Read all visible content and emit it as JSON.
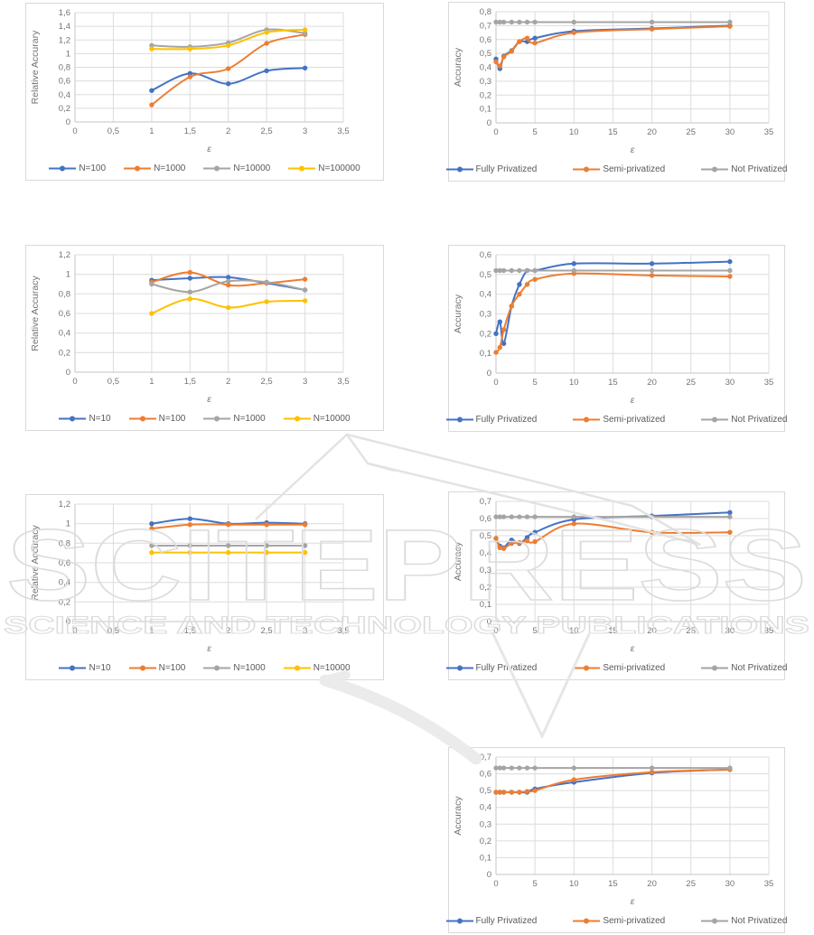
{
  "watermark": {
    "brand": "SCITEPRESS",
    "tagline": "SCIENCE AND TECHNOLOGY PUBLICATIONS"
  },
  "colors": {
    "blue": "#4472C4",
    "orange": "#ED7D31",
    "gray": "#A5A5A5",
    "yellow": "#FFC000",
    "grid": "#DCDCDC",
    "axis_line": "#C6C6C6",
    "watermark": "#DCDCDC"
  },
  "chart_data": [
    {
      "name": "relative-accuracy-vs-epsilon-1",
      "type": "line",
      "ylabel": "Relative Accurary",
      "xlabel": "ε",
      "xlim": [
        0,
        3.5
      ],
      "ylim": [
        0,
        1.6
      ],
      "xticks": [
        0,
        0.5,
        1,
        1.5,
        2,
        2.5,
        3,
        3.5
      ],
      "xtick_labels": [
        "0",
        "0,5",
        "1",
        "1,5",
        "2",
        "2,5",
        "3",
        "3,5"
      ],
      "yticks": [
        0,
        0.2,
        0.4,
        0.6,
        0.8,
        1,
        1.2,
        1.4,
        1.6
      ],
      "ytick_labels": [
        "0",
        "0,2",
        "0,4",
        "0,6",
        "0,8",
        "1",
        "1,2",
        "1,4",
        "1,6"
      ],
      "x": [
        1,
        1.5,
        2,
        2.5,
        3
      ],
      "series": [
        {
          "name": "N=100",
          "color": "blue",
          "values": [
            0.46,
            0.71,
            0.56,
            0.75,
            0.79
          ]
        },
        {
          "name": "N=1000",
          "color": "orange",
          "values": [
            0.25,
            0.66,
            0.78,
            1.15,
            1.28
          ]
        },
        {
          "name": "N=10000",
          "color": "gray",
          "values": [
            1.12,
            1.1,
            1.16,
            1.35,
            1.3
          ]
        },
        {
          "name": "N=100000",
          "color": "yellow",
          "values": [
            1.07,
            1.07,
            1.12,
            1.31,
            1.35
          ]
        }
      ]
    },
    {
      "name": "accuracy-vs-epsilon-1",
      "type": "line",
      "ylabel": "Accuracy",
      "xlabel": "ε",
      "xlim": [
        0,
        35
      ],
      "ylim": [
        0,
        0.8
      ],
      "xticks": [
        0,
        5,
        10,
        15,
        20,
        25,
        30,
        35
      ],
      "xtick_labels": [
        "0",
        "5",
        "10",
        "15",
        "20",
        "25",
        "30",
        "35"
      ],
      "yticks": [
        0,
        0.1,
        0.2,
        0.3,
        0.4,
        0.5,
        0.6,
        0.7,
        0.8
      ],
      "ytick_labels": [
        "0",
        "0,1",
        "0,2",
        "0,3",
        "0,4",
        "0,5",
        "0,6",
        "0,7",
        "0,8"
      ],
      "x": [
        0,
        0.5,
        1,
        2,
        3,
        4,
        5,
        10,
        20,
        30
      ],
      "series": [
        {
          "name": "Fully Privatized",
          "color": "blue",
          "values": [
            0.46,
            0.39,
            0.48,
            0.52,
            0.585,
            0.585,
            0.61,
            0.66,
            0.68,
            0.7
          ]
        },
        {
          "name": "Semi-privatized",
          "color": "orange",
          "values": [
            0.44,
            0.41,
            0.475,
            0.515,
            0.585,
            0.61,
            0.575,
            0.65,
            0.675,
            0.695
          ]
        },
        {
          "name": "Not Privatized",
          "color": "gray",
          "values": [
            0.725,
            0.725,
            0.725,
            0.725,
            0.725,
            0.725,
            0.725,
            0.725,
            0.725,
            0.725
          ]
        }
      ]
    },
    {
      "name": "relative-accuracy-vs-epsilon-2",
      "type": "line",
      "ylabel": "Relative Accuracy",
      "xlabel": "ε",
      "xlim": [
        0,
        3.5
      ],
      "ylim": [
        0,
        1.2
      ],
      "xticks": [
        0,
        0.5,
        1,
        1.5,
        2,
        2.5,
        3,
        3.5
      ],
      "xtick_labels": [
        "0",
        "0,5",
        "1",
        "1,5",
        "2",
        "2,5",
        "3",
        "3,5"
      ],
      "yticks": [
        0,
        0.2,
        0.4,
        0.6,
        0.8,
        1,
        1.2
      ],
      "ytick_labels": [
        "0",
        "0,2",
        "0,4",
        "0,6",
        "0,8",
        "1",
        "1,2"
      ],
      "x": [
        1,
        1.5,
        2,
        2.5,
        3
      ],
      "series": [
        {
          "name": "N=10",
          "color": "blue",
          "values": [
            0.94,
            0.96,
            0.97,
            0.91,
            0.84
          ]
        },
        {
          "name": "N=100",
          "color": "orange",
          "values": [
            0.92,
            1.02,
            0.89,
            0.91,
            0.95
          ]
        },
        {
          "name": "N=1000",
          "color": "gray",
          "values": [
            0.9,
            0.82,
            0.93,
            0.92,
            0.84
          ]
        },
        {
          "name": "N=10000",
          "color": "yellow",
          "values": [
            0.6,
            0.75,
            0.66,
            0.72,
            0.73
          ]
        }
      ]
    },
    {
      "name": "accuracy-vs-epsilon-2",
      "type": "line",
      "ylabel": "Accuracy",
      "xlabel": "ε",
      "xlim": [
        0,
        35
      ],
      "ylim": [
        0,
        0.6
      ],
      "xticks": [
        0,
        5,
        10,
        15,
        20,
        25,
        30,
        35
      ],
      "xtick_labels": [
        "0",
        "5",
        "10",
        "15",
        "20",
        "25",
        "30",
        "35"
      ],
      "yticks": [
        0,
        0.1,
        0.2,
        0.3,
        0.4,
        0.5,
        0.6
      ],
      "ytick_labels": [
        "0",
        "0,1",
        "0,2",
        "0,3",
        "0,4",
        "0,5",
        "0,6"
      ],
      "x": [
        0,
        0.5,
        1,
        2,
        3,
        4,
        5,
        10,
        20,
        30
      ],
      "series": [
        {
          "name": "Fully Privatized",
          "color": "blue",
          "values": [
            0.2,
            0.26,
            0.15,
            0.34,
            0.45,
            0.52,
            0.52,
            0.555,
            0.555,
            0.565
          ]
        },
        {
          "name": "Semi-privatized",
          "color": "orange",
          "values": [
            0.105,
            0.13,
            0.22,
            0.34,
            0.4,
            0.45,
            0.475,
            0.505,
            0.495,
            0.49
          ]
        },
        {
          "name": "Not Privatized",
          "color": "gray",
          "values": [
            0.52,
            0.52,
            0.52,
            0.52,
            0.52,
            0.52,
            0.52,
            0.52,
            0.52,
            0.52
          ]
        }
      ]
    },
    {
      "name": "relative-accuracy-vs-epsilon-3",
      "type": "line",
      "ylabel": "Relative Accuracy",
      "xlabel": "ε",
      "xlim": [
        0,
        3.5
      ],
      "ylim": [
        0,
        1.2
      ],
      "xticks": [
        0,
        0.5,
        1,
        1.5,
        2,
        2.5,
        3,
        3.5
      ],
      "xtick_labels": [
        "0",
        "0,5",
        "1",
        "1,5",
        "2",
        "2,5",
        "3",
        "3,5"
      ],
      "yticks": [
        0,
        0.2,
        0.4,
        0.6,
        0.8,
        1,
        1.2
      ],
      "ytick_labels": [
        "0",
        "0,2",
        "0,4",
        "0,6",
        "0,8",
        "1",
        "1,2"
      ],
      "x": [
        1,
        1.5,
        2,
        2.5,
        3
      ],
      "series": [
        {
          "name": "N=10",
          "color": "blue",
          "values": [
            1.0,
            1.05,
            1.0,
            1.01,
            1.0
          ]
        },
        {
          "name": "N=100",
          "color": "orange",
          "values": [
            0.95,
            0.99,
            0.99,
            0.99,
            0.99
          ]
        },
        {
          "name": "N=1000",
          "color": "gray",
          "values": [
            0.775,
            0.775,
            0.775,
            0.775,
            0.775
          ]
        },
        {
          "name": "N=10000",
          "color": "yellow",
          "values": [
            0.705,
            0.705,
            0.705,
            0.705,
            0.705
          ]
        }
      ]
    },
    {
      "name": "accuracy-vs-epsilon-3",
      "type": "line",
      "ylabel": "Accuracy",
      "xlabel": "ε",
      "xlim": [
        0,
        35
      ],
      "ylim": [
        0,
        0.7
      ],
      "xticks": [
        0,
        5,
        10,
        15,
        20,
        25,
        30,
        35
      ],
      "xtick_labels": [
        "0",
        "5",
        "10",
        "15",
        "20",
        "25",
        "30",
        "35"
      ],
      "yticks": [
        0,
        0.1,
        0.2,
        0.3,
        0.4,
        0.5,
        0.6,
        0.7
      ],
      "ytick_labels": [
        "0",
        "0,1",
        "0,2",
        "0,3",
        "0,4",
        "0,5",
        "0,6",
        "0,7"
      ],
      "x": [
        0,
        0.5,
        1,
        2,
        3,
        4,
        5,
        10,
        20,
        30
      ],
      "series": [
        {
          "name": "Fully Privatized",
          "color": "blue",
          "values": [
            0.485,
            0.44,
            0.43,
            0.475,
            0.455,
            0.49,
            0.52,
            0.595,
            0.615,
            0.635
          ]
        },
        {
          "name": "Semi-privatized",
          "color": "orange",
          "values": [
            0.485,
            0.43,
            0.425,
            0.455,
            0.46,
            0.47,
            0.465,
            0.57,
            0.52,
            0.52
          ]
        },
        {
          "name": "Not Privatized",
          "color": "gray",
          "values": [
            0.61,
            0.61,
            0.61,
            0.61,
            0.61,
            0.61,
            0.61,
            0.61,
            0.61,
            0.61
          ]
        }
      ]
    },
    {
      "name": "accuracy-vs-epsilon-4",
      "type": "line",
      "ylabel": "Accuracy",
      "xlabel": "ε",
      "xlim": [
        0,
        35
      ],
      "ylim": [
        0,
        0.7
      ],
      "xticks": [
        0,
        5,
        10,
        15,
        20,
        25,
        30,
        35
      ],
      "xtick_labels": [
        "0",
        "5",
        "10",
        "15",
        "20",
        "25",
        "30",
        "35"
      ],
      "yticks": [
        0,
        0.1,
        0.2,
        0.3,
        0.4,
        0.5,
        0.6,
        0.7
      ],
      "ytick_labels": [
        "0",
        "0,1",
        "0,2",
        "0,3",
        "0,4",
        "0,5",
        "0,6",
        "0,7"
      ],
      "x": [
        0,
        0.5,
        1,
        2,
        3,
        4,
        5,
        10,
        20,
        30
      ],
      "series": [
        {
          "name": "Fully Privatized",
          "color": "blue",
          "values": [
            0.49,
            0.49,
            0.49,
            0.49,
            0.49,
            0.49,
            0.51,
            0.55,
            0.605,
            0.625
          ]
        },
        {
          "name": "Semi-privatized",
          "color": "orange",
          "values": [
            0.49,
            0.49,
            0.49,
            0.49,
            0.49,
            0.495,
            0.5,
            0.565,
            0.61,
            0.625
          ]
        },
        {
          "name": "Not Privatized",
          "color": "gray",
          "values": [
            0.635,
            0.635,
            0.635,
            0.635,
            0.635,
            0.635,
            0.635,
            0.635,
            0.635,
            0.635
          ]
        }
      ]
    }
  ]
}
